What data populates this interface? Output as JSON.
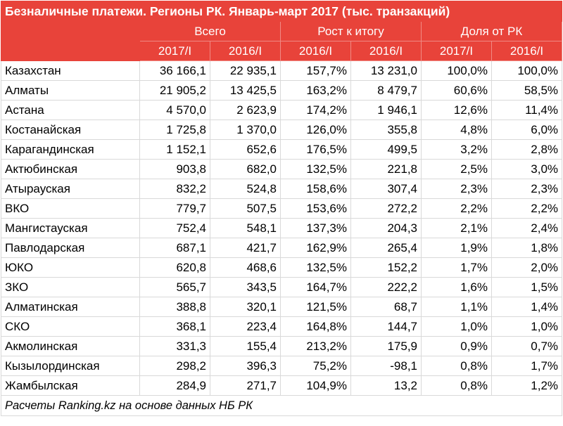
{
  "title": "Безналичные платежи. Регионы РК. Январь-март 2017 (тыс. транзакций)",
  "groups": [
    "Всего",
    "Рост к итогу",
    "Доля от РК"
  ],
  "subheaders": [
    "2017/I",
    "2016/I",
    "2016/I",
    "2016/I",
    "2017/I",
    "2016/I"
  ],
  "rows": [
    {
      "region": "Казахстан",
      "values": [
        "36 166,1",
        "22 935,1",
        "157,7%",
        "13 231,0",
        "100,0%",
        "100,0%"
      ]
    },
    {
      "region": "Алматы",
      "values": [
        "21 905,2",
        "13 425,5",
        "163,2%",
        "8 479,7",
        "60,6%",
        "58,5%"
      ]
    },
    {
      "region": "Астана",
      "values": [
        "4 570,0",
        "2 623,9",
        "174,2%",
        "1 946,1",
        "12,6%",
        "11,4%"
      ]
    },
    {
      "region": "Костанайская",
      "values": [
        "1 725,8",
        "1 370,0",
        "126,0%",
        "355,8",
        "4,8%",
        "6,0%"
      ]
    },
    {
      "region": "Карагандинская",
      "values": [
        "1 152,1",
        "652,6",
        "176,5%",
        "499,5",
        "3,2%",
        "2,8%"
      ]
    },
    {
      "region": "Актюбинская",
      "values": [
        "903,8",
        "682,0",
        "132,5%",
        "221,8",
        "2,5%",
        "3,0%"
      ]
    },
    {
      "region": "Атырауская",
      "values": [
        "832,2",
        "524,8",
        "158,6%",
        "307,4",
        "2,3%",
        "2,3%"
      ]
    },
    {
      "region": "ВКО",
      "values": [
        "779,7",
        "507,5",
        "153,6%",
        "272,2",
        "2,2%",
        "2,2%"
      ]
    },
    {
      "region": "Мангистауская",
      "values": [
        "752,4",
        "548,1",
        "137,3%",
        "204,3",
        "2,1%",
        "2,4%"
      ]
    },
    {
      "region": "Павлодарская",
      "values": [
        "687,1",
        "421,7",
        "162,9%",
        "265,4",
        "1,9%",
        "1,8%"
      ]
    },
    {
      "region": "ЮКО",
      "values": [
        "620,8",
        "468,6",
        "132,5%",
        "152,2",
        "1,7%",
        "2,0%"
      ]
    },
    {
      "region": "ЗКО",
      "values": [
        "565,7",
        "343,5",
        "164,7%",
        "222,2",
        "1,6%",
        "1,5%"
      ]
    },
    {
      "region": "Алматинская",
      "values": [
        "388,8",
        "320,1",
        "121,5%",
        "68,7",
        "1,1%",
        "1,4%"
      ]
    },
    {
      "region": "СКО",
      "values": [
        "368,1",
        "223,4",
        "164,8%",
        "144,7",
        "1,0%",
        "1,0%"
      ]
    },
    {
      "region": "Акмолинская",
      "values": [
        "331,3",
        "155,4",
        "213,2%",
        "175,9",
        "0,9%",
        "0,7%"
      ]
    },
    {
      "region": "Кызылординская",
      "values": [
        "298,2",
        "396,3",
        "75,2%",
        "-98,1",
        "0,8%",
        "1,7%"
      ]
    },
    {
      "region": "Жамбылская",
      "values": [
        "284,9",
        "271,7",
        "104,9%",
        "13,2",
        "0,8%",
        "1,2%"
      ]
    }
  ],
  "footer": "Расчеты Ranking.kz на основе данных НБ РК"
}
